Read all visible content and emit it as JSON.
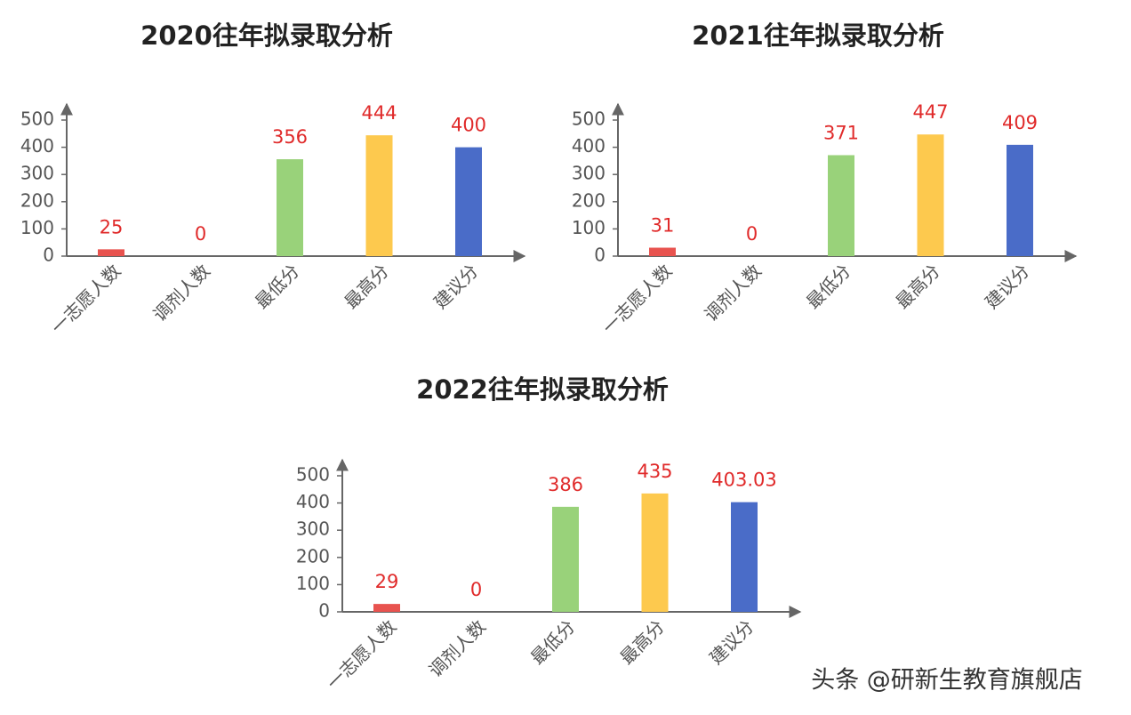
{
  "chart_data": [
    {
      "type": "bar",
      "title": "2020往年拟录取分析",
      "categories": [
        "一志愿人数",
        "调剂人数",
        "最低分",
        "最高分",
        "建议分"
      ],
      "values": [
        25,
        0,
        356,
        444,
        400
      ],
      "colors": [
        "#e8534f",
        null,
        "#99d27a",
        "#fdc94e",
        "#4a6cc8"
      ],
      "ylim": [
        0,
        500
      ],
      "yticks": [
        0,
        100,
        200,
        300,
        400,
        500
      ]
    },
    {
      "type": "bar",
      "title": "2021往年拟录取分析",
      "categories": [
        "一志愿人数",
        "调剂人数",
        "最低分",
        "最高分",
        "建议分"
      ],
      "values": [
        31,
        0,
        371,
        447,
        409
      ],
      "colors": [
        "#e8534f",
        null,
        "#99d27a",
        "#fdc94e",
        "#4a6cc8"
      ],
      "ylim": [
        0,
        500
      ],
      "yticks": [
        0,
        100,
        200,
        300,
        400,
        500
      ]
    },
    {
      "type": "bar",
      "title": "2022往年拟录取分析",
      "categories": [
        "一志愿人数",
        "调剂人数",
        "最低分",
        "最高分",
        "建议分"
      ],
      "values": [
        29,
        0,
        386,
        435,
        403.03
      ],
      "colors": [
        "#e8534f",
        null,
        "#99d27a",
        "#fdc94e",
        "#4a6cc8"
      ],
      "ylim": [
        0,
        500
      ],
      "yticks": [
        0,
        100,
        200,
        300,
        400,
        500
      ]
    }
  ],
  "watermark": "头条 @研新生教育旗舰店"
}
